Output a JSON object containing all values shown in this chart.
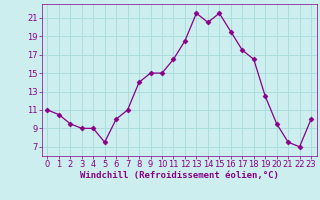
{
  "x": [
    0,
    1,
    2,
    3,
    4,
    5,
    6,
    7,
    8,
    9,
    10,
    11,
    12,
    13,
    14,
    15,
    16,
    17,
    18,
    19,
    20,
    21,
    22,
    23
  ],
  "y": [
    11,
    10.5,
    9.5,
    9,
    9,
    7.5,
    10,
    11,
    14,
    15,
    15,
    16.5,
    18.5,
    21.5,
    20.5,
    21.5,
    19.5,
    17.5,
    16.5,
    12.5,
    9.5,
    7.5,
    7,
    10
  ],
  "line_color": "#880088",
  "marker": "D",
  "marker_size": 2.5,
  "bg_color": "#cceeee",
  "grid_color": "#aadddd",
  "xlabel": "Windchill (Refroidissement éolien,°C)",
  "xlabel_fontsize": 6.5,
  "tick_color": "#880088",
  "tick_fontsize": 6.0,
  "ylim": [
    6,
    22.5
  ],
  "xlim": [
    -0.5,
    23.5
  ],
  "yticks": [
    7,
    9,
    11,
    13,
    15,
    17,
    19,
    21
  ],
  "xticks": [
    0,
    1,
    2,
    3,
    4,
    5,
    6,
    7,
    8,
    9,
    10,
    11,
    12,
    13,
    14,
    15,
    16,
    17,
    18,
    19,
    20,
    21,
    22,
    23
  ]
}
